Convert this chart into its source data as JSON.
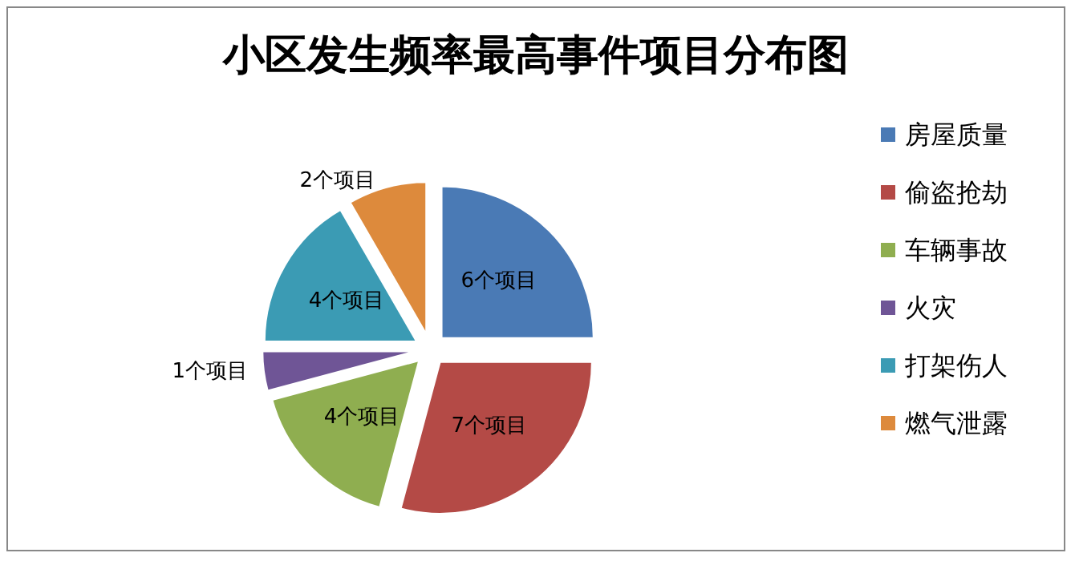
{
  "chart_data": {
    "type": "pie",
    "title": "小区发生频率最高事件项目分布图",
    "categories": [
      "房屋质量",
      "偷盗抢劫",
      "车辆事故",
      "火灾",
      "打架伤人",
      "燃气泄露"
    ],
    "values": [
      6,
      7,
      4,
      1,
      4,
      2
    ],
    "colors": [
      "#4a7ab5",
      "#b44a46",
      "#8fae50",
      "#6f5596",
      "#3b9bb4",
      "#dd8a3c"
    ],
    "value_labels": [
      "6个项目",
      "7个项目",
      "4个项目",
      "1个项目",
      "4个项目",
      "2个项目"
    ],
    "legend": "right"
  }
}
